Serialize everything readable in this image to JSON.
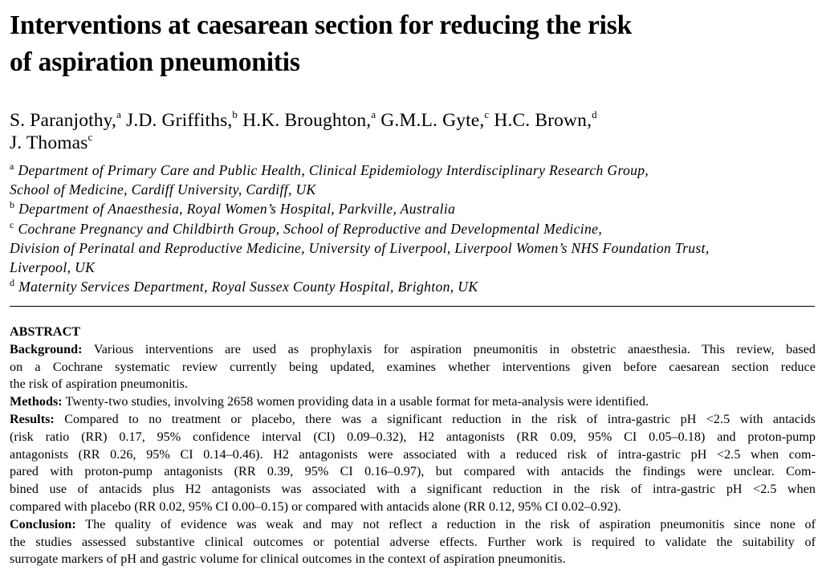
{
  "title": {
    "line1": "Interventions at caesarean section for reducing the risk",
    "line2": "of aspiration pneumonitis"
  },
  "authors": [
    {
      "name": "S. Paranjothy,",
      "sup": "a"
    },
    {
      "name": "J.D. Griffiths,",
      "sup": "b"
    },
    {
      "name": "H.K. Broughton,",
      "sup": "a"
    },
    {
      "name": "G.M.L. Gyte,",
      "sup": "c"
    },
    {
      "name": "H.C. Brown,",
      "sup": "d"
    },
    {
      "name": "J. Thomas",
      "sup": "c"
    }
  ],
  "affiliations": [
    {
      "sup": "a",
      "lines": [
        "Department of Primary Care and Public Health, Clinical Epidemiology Interdisciplinary Research Group,",
        "School of Medicine, Cardiff University, Cardiff, UK"
      ]
    },
    {
      "sup": "b",
      "lines": [
        "Department of Anaesthesia, Royal Women’s Hospital, Parkville, Australia"
      ]
    },
    {
      "sup": "c",
      "lines": [
        "Cochrane Pregnancy and Childbirth Group, School of Reproductive and Developmental Medicine,",
        "Division of Perinatal and Reproductive Medicine, University of Liverpool, Liverpool Women’s NHS Foundation Trust,",
        "Liverpool, UK"
      ]
    },
    {
      "sup": "d",
      "lines": [
        "Maternity Services Department, Royal Sussex County Hospital, Brighton, UK"
      ]
    }
  ],
  "abstract": {
    "heading": "ABSTRACT",
    "background": {
      "label": "Background:",
      "lines": [
        "Various interventions are used as prophylaxis for aspiration pneumonitis in obstetric anaesthesia. This review, based",
        "on a Cochrane systematic review currently being updated, examines whether interventions given before caesarean section reduce",
        "the risk of aspiration pneumonitis."
      ]
    },
    "methods": {
      "label": "Methods:",
      "lines": [
        "Twenty-two studies, involving 2658 women providing data in a usable format for meta-analysis were identified."
      ]
    },
    "results": {
      "label": "Results:",
      "lines": [
        "Compared to no treatment or placebo, there was a significant reduction in the risk of intra-gastric pH <2.5 with antacids",
        "(risk ratio (RR) 0.17, 95% confidence interval (CI) 0.09–0.32), H2 antagonists (RR 0.09, 95% CI 0.05–0.18) and proton-pump",
        "antagonists (RR 0.26, 95% CI 0.14–0.46). H2 antagonists were associated with a reduced risk of intra-gastric pH <2.5 when com-",
        "pared with proton-pump antagonists (RR 0.39, 95% CI 0.16–0.97), but compared with antacids the findings were unclear. Com-",
        "bined use of antacids plus H2 antagonists was associated with a significant reduction in the risk of intra-gastric pH <2.5 when",
        "compared with placebo (RR 0.02, 95% CI 0.00–0.15) or compared with antacids alone (RR 0.12, 95% CI 0.02–0.92)."
      ]
    },
    "conclusion": {
      "label": "Conclusion:",
      "lines": [
        "The quality of evidence was weak and may not reflect a reduction in the risk of aspiration pneumonitis since none of",
        "the studies assessed substantive clinical outcomes or potential adverse effects. Further work is required to validate the suitability of",
        "surrogate markers of pH and gastric volume for clinical outcomes in the context of aspiration pneumonitis."
      ]
    }
  }
}
